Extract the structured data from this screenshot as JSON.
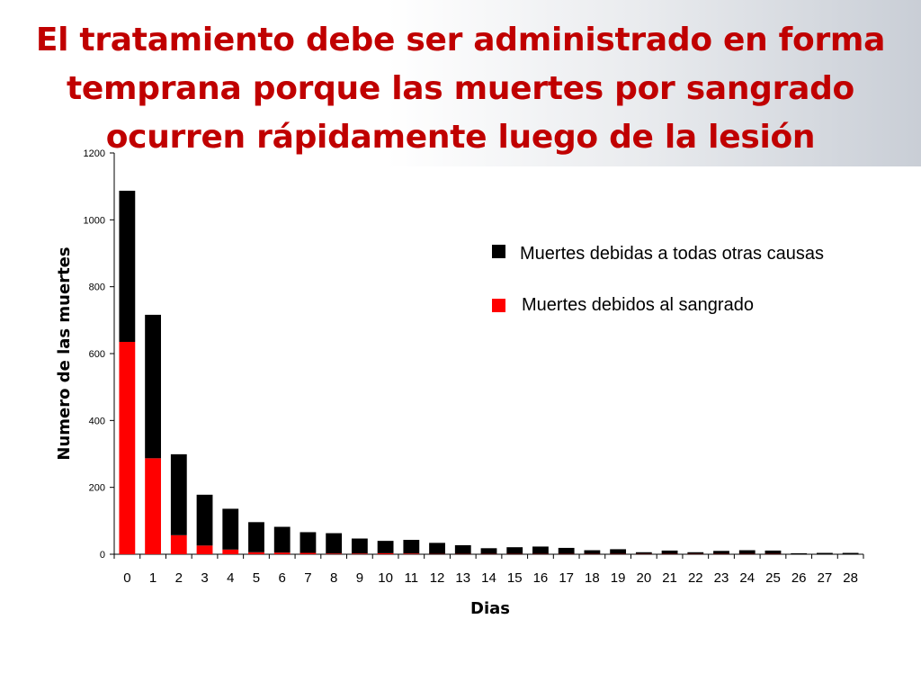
{
  "slide": {
    "title": "El tratamiento debe ser administrado en forma temprana porque las muertes por sangrado ocurren rápidamente luego de la lesión"
  },
  "colors": {
    "title": "#c00000",
    "other_causes": "#000000",
    "bleeding": "#ff0000"
  },
  "chart_data": {
    "type": "bar",
    "stacked": true,
    "title": "",
    "xlabel": "Dias",
    "ylabel": "Numero de las muertes",
    "ylim": [
      0,
      1200
    ],
    "yticks": [
      0,
      200,
      400,
      600,
      800,
      1000,
      1200
    ],
    "grid": false,
    "legend_position": "right",
    "categories": [
      "0",
      "1",
      "2",
      "3",
      "4",
      "5",
      "6",
      "7",
      "8",
      "9",
      "10",
      "11",
      "12",
      "13",
      "14",
      "15",
      "16",
      "17",
      "18",
      "19",
      "20",
      "21",
      "22",
      "23",
      "24",
      "25",
      "26",
      "27",
      "28"
    ],
    "series": [
      {
        "name": "Muertes debidos al sangrado",
        "color": "#ff0000",
        "values": [
          635,
          287,
          57,
          26,
          14,
          6,
          5,
          4,
          2,
          2,
          3,
          2,
          1,
          1,
          1,
          1,
          1,
          1,
          1,
          1,
          1,
          1,
          1,
          1,
          1,
          1,
          0,
          0,
          0
        ]
      },
      {
        "name": "Muertes debidas a todas otras causas",
        "color": "#000000",
        "values": [
          452,
          429,
          242,
          152,
          122,
          90,
          77,
          62,
          61,
          45,
          37,
          41,
          33,
          26,
          17,
          20,
          22,
          18,
          11,
          14,
          5,
          10,
          5,
          9,
          11,
          10,
          3,
          4,
          4
        ]
      }
    ],
    "legend": [
      {
        "label": "Muertes debidas a todas otras causas",
        "color": "#000000"
      },
      {
        "label": "Muertes debidos al sangrado",
        "color": "#ff0000"
      }
    ]
  }
}
